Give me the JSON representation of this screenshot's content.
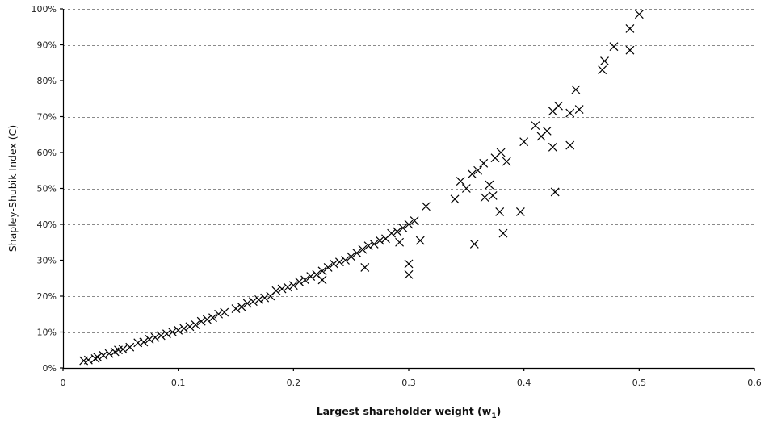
{
  "chart_data": {
    "type": "scatter",
    "title": "",
    "xlabel": "Largest shareholder weight (w",
    "xlabel_subscript": "1",
    "xlabel_suffix": ")",
    "ylabel": "Shapley-Shubik Index (C)",
    "xlim": [
      0,
      0.6
    ],
    "ylim": [
      0,
      1.0
    ],
    "x_ticks": [
      0,
      0.1,
      0.2,
      0.3,
      0.4,
      0.5,
      0.6
    ],
    "x_tick_labels": [
      "0",
      "0.1",
      "0.2",
      "0.3",
      "0.4",
      "0.5",
      "0.6"
    ],
    "y_ticks": [
      0,
      0.1,
      0.2,
      0.3,
      0.4,
      0.5,
      0.6,
      0.7,
      0.8,
      0.9,
      1.0
    ],
    "y_tick_labels": [
      "0%",
      "10%",
      "20%",
      "30%",
      "40%",
      "50%",
      "60%",
      "70%",
      "80%",
      "90%",
      "100%"
    ],
    "grid": "horizontal-dashed",
    "legend": "none",
    "marker": "x",
    "marker_color": "#000000",
    "points": [
      [
        0.018,
        0.02
      ],
      [
        0.022,
        0.022
      ],
      [
        0.028,
        0.026
      ],
      [
        0.03,
        0.03
      ],
      [
        0.035,
        0.035
      ],
      [
        0.04,
        0.04
      ],
      [
        0.045,
        0.045
      ],
      [
        0.048,
        0.05
      ],
      [
        0.052,
        0.052
      ],
      [
        0.058,
        0.058
      ],
      [
        0.065,
        0.07
      ],
      [
        0.07,
        0.072
      ],
      [
        0.075,
        0.08
      ],
      [
        0.08,
        0.085
      ],
      [
        0.085,
        0.09
      ],
      [
        0.09,
        0.095
      ],
      [
        0.095,
        0.1
      ],
      [
        0.1,
        0.105
      ],
      [
        0.105,
        0.11
      ],
      [
        0.11,
        0.115
      ],
      [
        0.115,
        0.12
      ],
      [
        0.12,
        0.13
      ],
      [
        0.125,
        0.135
      ],
      [
        0.13,
        0.14
      ],
      [
        0.135,
        0.15
      ],
      [
        0.14,
        0.155
      ],
      [
        0.15,
        0.165
      ],
      [
        0.155,
        0.17
      ],
      [
        0.16,
        0.18
      ],
      [
        0.165,
        0.185
      ],
      [
        0.17,
        0.19
      ],
      [
        0.175,
        0.195
      ],
      [
        0.18,
        0.2
      ],
      [
        0.185,
        0.215
      ],
      [
        0.19,
        0.22
      ],
      [
        0.195,
        0.225
      ],
      [
        0.2,
        0.23
      ],
      [
        0.205,
        0.24
      ],
      [
        0.21,
        0.245
      ],
      [
        0.215,
        0.255
      ],
      [
        0.22,
        0.26
      ],
      [
        0.225,
        0.27
      ],
      [
        0.225,
        0.245
      ],
      [
        0.23,
        0.28
      ],
      [
        0.235,
        0.29
      ],
      [
        0.24,
        0.295
      ],
      [
        0.245,
        0.3
      ],
      [
        0.25,
        0.31
      ],
      [
        0.255,
        0.32
      ],
      [
        0.26,
        0.33
      ],
      [
        0.262,
        0.28
      ],
      [
        0.265,
        0.34
      ],
      [
        0.27,
        0.345
      ],
      [
        0.275,
        0.355
      ],
      [
        0.28,
        0.36
      ],
      [
        0.285,
        0.375
      ],
      [
        0.29,
        0.38
      ],
      [
        0.292,
        0.35
      ],
      [
        0.295,
        0.39
      ],
      [
        0.3,
        0.4
      ],
      [
        0.3,
        0.29
      ],
      [
        0.3,
        0.26
      ],
      [
        0.305,
        0.41
      ],
      [
        0.31,
        0.355
      ],
      [
        0.315,
        0.45
      ],
      [
        0.34,
        0.47
      ],
      [
        0.345,
        0.52
      ],
      [
        0.35,
        0.5
      ],
      [
        0.355,
        0.54
      ],
      [
        0.357,
        0.345
      ],
      [
        0.36,
        0.55
      ],
      [
        0.365,
        0.57
      ],
      [
        0.366,
        0.475
      ],
      [
        0.37,
        0.51
      ],
      [
        0.373,
        0.48
      ],
      [
        0.375,
        0.585
      ],
      [
        0.379,
        0.435
      ],
      [
        0.38,
        0.6
      ],
      [
        0.382,
        0.375
      ],
      [
        0.385,
        0.575
      ],
      [
        0.397,
        0.435
      ],
      [
        0.4,
        0.63
      ],
      [
        0.41,
        0.675
      ],
      [
        0.415,
        0.645
      ],
      [
        0.42,
        0.66
      ],
      [
        0.425,
        0.715
      ],
      [
        0.425,
        0.615
      ],
      [
        0.427,
        0.49
      ],
      [
        0.43,
        0.73
      ],
      [
        0.44,
        0.71
      ],
      [
        0.44,
        0.62
      ],
      [
        0.445,
        0.775
      ],
      [
        0.448,
        0.72
      ],
      [
        0.468,
        0.83
      ],
      [
        0.47,
        0.855
      ],
      [
        0.478,
        0.895
      ],
      [
        0.492,
        0.945
      ],
      [
        0.492,
        0.885
      ],
      [
        0.5,
        0.985
      ]
    ]
  }
}
